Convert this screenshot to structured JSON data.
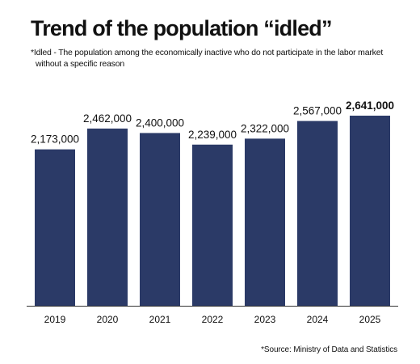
{
  "chart_data": {
    "type": "bar",
    "title": "Trend of the population “idled”",
    "subtitle_lines": [
      "*Idled - The population among the economically inactive who do not participate in the labor market",
      "without a specific reason"
    ],
    "source": "*Source: Ministry of Data and Statistics",
    "categories": [
      "2019",
      "2020",
      "2021",
      "2022",
      "2023",
      "2024",
      "2025"
    ],
    "values": [
      2173000,
      2462000,
      2400000,
      2239000,
      2322000,
      2567000,
      2641000
    ],
    "value_labels": [
      "2,173,000",
      "2,462,000",
      "2,400,000",
      "2,239,000",
      "2,322,000",
      "2,567,000",
      "2,641,000"
    ],
    "highlight_index": 6,
    "ylim": [
      0,
      2641000
    ],
    "grid": false,
    "legend": "none",
    "bar_color": "#2b3a67",
    "axis_color": "#333333"
  }
}
